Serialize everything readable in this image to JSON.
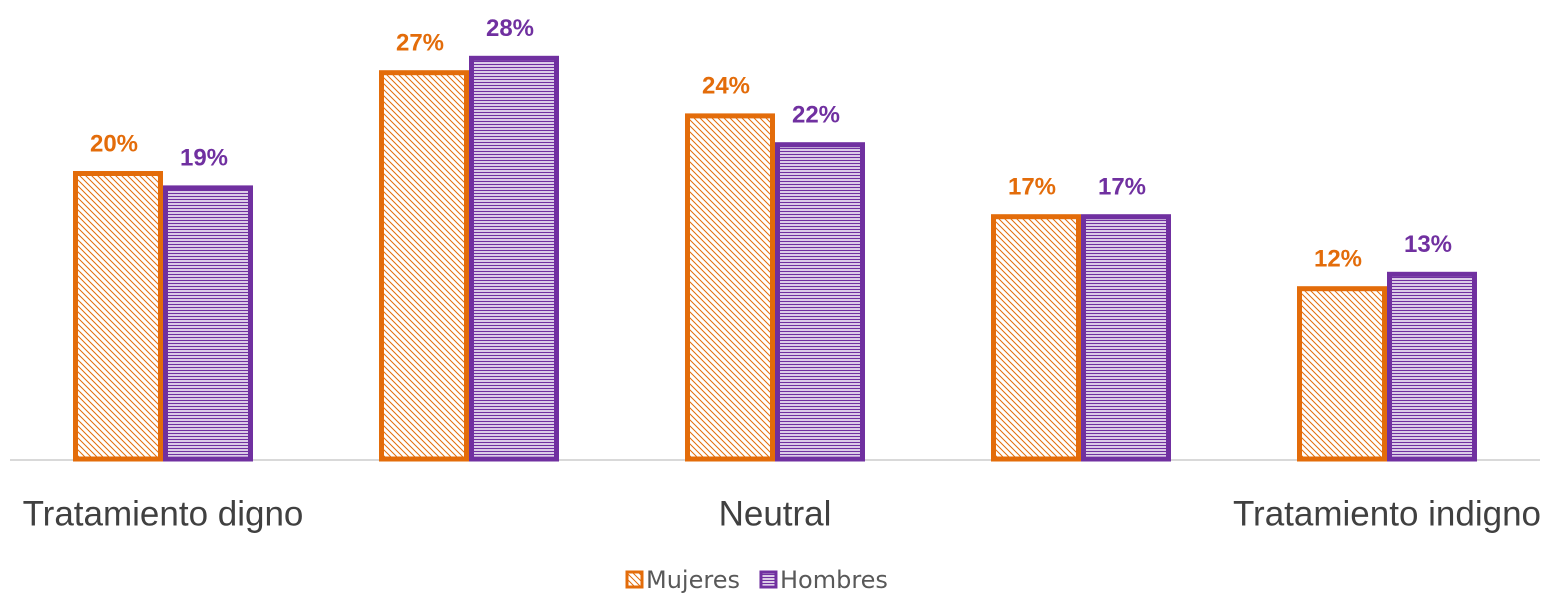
{
  "chart_data": {
    "type": "bar",
    "categories": [
      "Tratamiento digno",
      null,
      "Neutral",
      null,
      "Tratamiento indigno"
    ],
    "series": [
      {
        "name": "Mujeres",
        "color": "#e36c0a",
        "values": [
          20,
          27,
          24,
          17,
          12
        ],
        "value_labels": [
          "20%",
          "27%",
          "24%",
          "17%",
          "12%"
        ]
      },
      {
        "name": "Hombres",
        "color": "#7030a0",
        "values": [
          19,
          28,
          22,
          17,
          13
        ],
        "value_labels": [
          "19%",
          "28%",
          "22%",
          "17%",
          "13%"
        ]
      }
    ],
    "legend": "bottom"
  }
}
